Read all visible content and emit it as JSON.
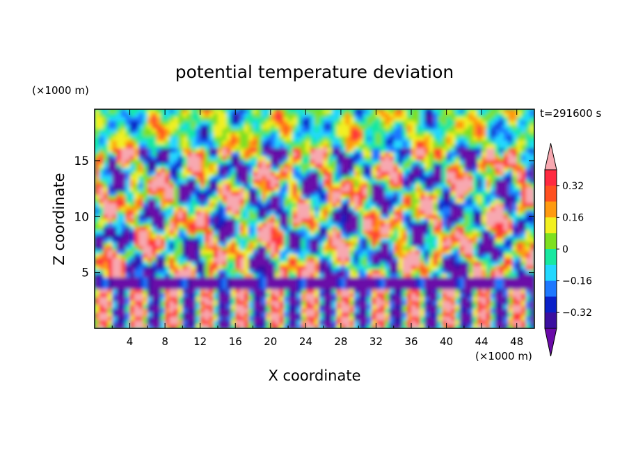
{
  "chart_data": {
    "type": "heatmap",
    "title": "potential temperature deviation",
    "xlabel": "X coordinate",
    "ylabel": "Z coordinate",
    "x_unit": "(×1000 m)",
    "y_unit": "(×1000 m)",
    "time_label": "t=291600 s",
    "xlim": [
      0,
      50
    ],
    "ylim": [
      0,
      19.6
    ],
    "x_ticks": [
      4,
      8,
      12,
      16,
      20,
      24,
      28,
      32,
      36,
      40,
      44,
      48
    ],
    "y_ticks": [
      5,
      10,
      15
    ],
    "colorbar": {
      "levels": [
        -0.4,
        -0.32,
        -0.24,
        -0.16,
        -0.08,
        0,
        0.08,
        0.16,
        0.24,
        0.32,
        0.4
      ],
      "labels": [
        "0.32",
        "0.16",
        "0",
        "−0.16",
        "−0.32"
      ],
      "label_values": [
        0.32,
        0.16,
        0,
        -0.16,
        -0.32
      ],
      "colors": [
        "#6a0aa8",
        "#3b0fa0",
        "#0a20c8",
        "#1e78ff",
        "#22d8ff",
        "#18e8a0",
        "#7ee020",
        "#f2f020",
        "#ff9a10",
        "#ff5020",
        "#ff2a40",
        "#f7a8b0"
      ],
      "extend": "both"
    }
  }
}
